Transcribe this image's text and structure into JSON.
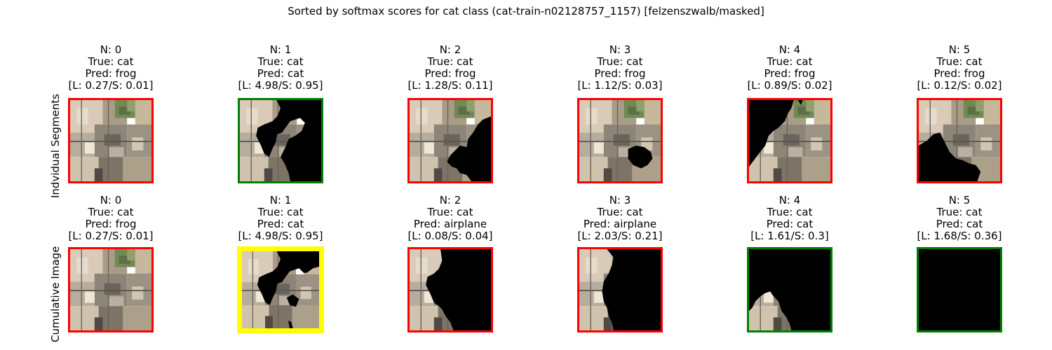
{
  "figure": {
    "title": "Sorted by softmax scores for cat class (cat-train-n02128757_1157) [felzenszwalb/masked]",
    "row_labels": [
      "Indvidual Segments",
      "Cumulative Image"
    ]
  },
  "rows": [
    {
      "panels": [
        {
          "n": "N: 0",
          "true": "True: cat",
          "pred": "Pred: frog",
          "score": "[L: 0.27/S: 0.01]",
          "frame": "red",
          "mask": "none"
        },
        {
          "n": "N: 1",
          "true": "True: cat",
          "pred": "Pred: cat",
          "score": "[L: 4.98/S: 0.95]",
          "frame": "green",
          "mask": "seg1"
        },
        {
          "n": "N: 2",
          "true": "True: cat",
          "pred": "Pred: frog",
          "score": "[L: 1.28/S: 0.11]",
          "frame": "red",
          "mask": "seg2"
        },
        {
          "n": "N: 3",
          "true": "True: cat",
          "pred": "Pred: frog",
          "score": "[L: 1.12/S: 0.03]",
          "frame": "red",
          "mask": "seg3"
        },
        {
          "n": "N: 4",
          "true": "True: cat",
          "pred": "Pred: frog",
          "score": "[L: 0.89/S: 0.02]",
          "frame": "red",
          "mask": "seg4"
        },
        {
          "n": "N: 5",
          "true": "True: cat",
          "pred": "Pred: frog",
          "score": "[L: 0.12/S: 0.02]",
          "frame": "red",
          "mask": "seg5"
        }
      ]
    },
    {
      "panels": [
        {
          "n": "N: 0",
          "true": "True: cat",
          "pred": "Pred: frog",
          "score": "[L: 0.27/S: 0.01]",
          "frame": "red",
          "mask": "none"
        },
        {
          "n": "N: 1",
          "true": "True: cat",
          "pred": "Pred: cat",
          "score": "[L: 4.98/S: 0.95]",
          "frame": "yellow",
          "mask": "cum1"
        },
        {
          "n": "N: 2",
          "true": "True: cat",
          "pred": "Pred: airplane",
          "score": "[L: 0.08/S: 0.04]",
          "frame": "red",
          "mask": "cum2"
        },
        {
          "n": "N: 3",
          "true": "True: cat",
          "pred": "Pred: airplane",
          "score": "[L: 2.03/S: 0.21]",
          "frame": "red",
          "mask": "cum3"
        },
        {
          "n": "N: 4",
          "true": "True: cat",
          "pred": "Pred: cat",
          "score": "[L: 1.61/S: 0.3]",
          "frame": "green",
          "mask": "cum4"
        },
        {
          "n": "N: 5",
          "true": "True: cat",
          "pred": "Pred: cat",
          "score": "[L: 1.68/S: 0.36]",
          "frame": "green",
          "mask": "full"
        }
      ]
    }
  ],
  "colors": {
    "red": "#ff0000",
    "green": "#008000",
    "yellow": "#ffff00",
    "mask": "#000000"
  }
}
